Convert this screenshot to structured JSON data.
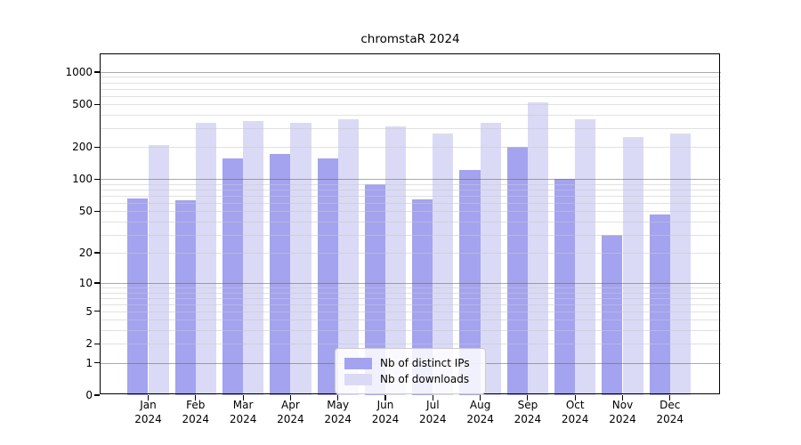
{
  "title": "chromstaR 2024",
  "chart_data": {
    "type": "bar",
    "title": "chromstaR 2024",
    "x": {
      "months": [
        "Jan",
        "Feb",
        "Mar",
        "Apr",
        "May",
        "Jun",
        "Jul",
        "Aug",
        "Sep",
        "Oct",
        "Nov",
        "Dec"
      ],
      "year": "2024"
    },
    "series": [
      {
        "name": "Nb of distinct IPs",
        "color": "#a3a3f0",
        "values": [
          66,
          63,
          158,
          172,
          157,
          90,
          65,
          122,
          203,
          100,
          30,
          47
        ]
      },
      {
        "name": "Nb of downloads",
        "color": "#dadaf6",
        "values": [
          211,
          339,
          350,
          337,
          363,
          312,
          270,
          336,
          520,
          363,
          250,
          269
        ]
      }
    ],
    "y_axis": {
      "scale": "log1p",
      "tick_labels": [
        1000,
        500,
        200,
        100,
        50,
        20,
        10,
        5,
        2,
        1,
        0
      ],
      "ylim": [
        0,
        1450
      ],
      "major_gridlines": [
        1,
        10,
        100,
        1000
      ],
      "minor_gridlines": [
        2,
        3,
        4,
        5,
        6,
        7,
        8,
        9,
        20,
        30,
        40,
        50,
        60,
        70,
        80,
        90,
        200,
        300,
        400,
        500,
        600,
        700,
        800,
        900
      ]
    },
    "grid": true,
    "legend_position": "bottom-center"
  },
  "style": {
    "bar_color_ips": "#a3a3f0",
    "bar_color_downloads": "#dadaf6",
    "major_grid_color": "rgba(100,100,100,0.55)",
    "minor_grid_color": "rgba(200,200,200,0.55)",
    "frame_color": "#000000",
    "legend_border_color": "#cccccc"
  }
}
